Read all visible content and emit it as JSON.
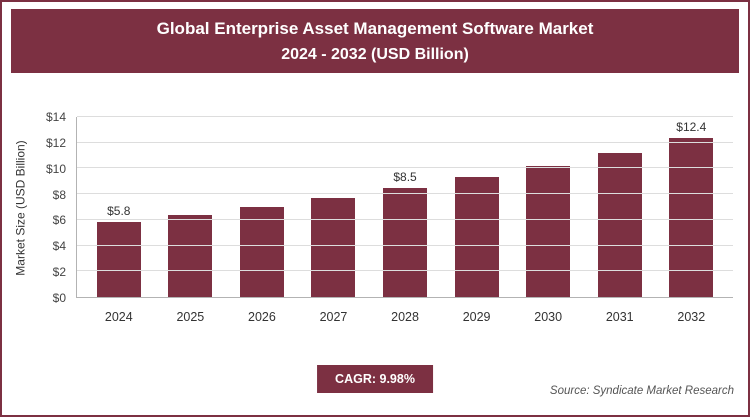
{
  "header": {
    "title_line1": "Global Enterprise Asset Management Software Market",
    "title_line2": "2024 - 2032 (USD Billion)"
  },
  "chart_data": {
    "type": "bar",
    "title": "Global Enterprise Asset Management Software Market 2024 - 2032 (USD Billion)",
    "categories": [
      "2024",
      "2025",
      "2026",
      "2027",
      "2028",
      "2029",
      "2030",
      "2031",
      "2032"
    ],
    "values": [
      5.8,
      6.4,
      7.0,
      7.7,
      8.5,
      9.3,
      10.2,
      11.2,
      12.4
    ],
    "value_labels": {
      "2024": "$5.8",
      "2028": "$8.5",
      "2032": "$12.4"
    },
    "xlabel": "",
    "ylabel": "Market Size (USD Billion)",
    "ylim": [
      0,
      14
    ],
    "yticks": [
      "$0",
      "$2",
      "$4",
      "$6",
      "$8",
      "$10",
      "$12",
      "$14"
    ],
    "grid": "horizontal",
    "legend": "none",
    "bar_color": "#7c3042"
  },
  "footer": {
    "cagr_label": "CAGR: 9.98%",
    "source": "Source: Syndicate Market Research"
  },
  "colors": {
    "accent": "#7c3042",
    "gridline": "#dddddd",
    "axis": "#b3b3b3",
    "text": "#333333"
  }
}
